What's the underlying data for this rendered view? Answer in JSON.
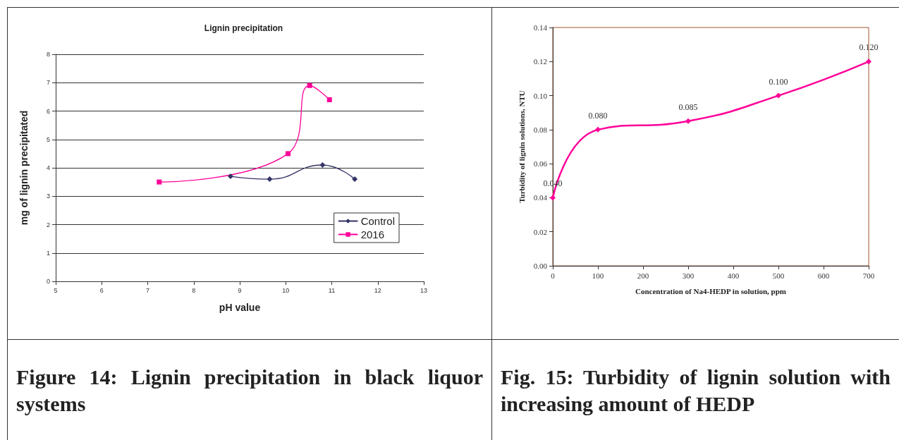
{
  "chart_data": [
    {
      "type": "line",
      "title": "Lignin precipitation",
      "xlabel": "pH value",
      "ylabel": "mg of lignin precipitated",
      "xlim": [
        5,
        13
      ],
      "xticks": [
        5,
        6,
        7,
        8,
        9,
        10,
        11,
        12,
        13
      ],
      "ylim": [
        0,
        8
      ],
      "yticks": [
        0,
        1,
        2,
        3,
        4,
        5,
        6,
        7,
        8
      ],
      "grid": "y",
      "legend": "bottom right",
      "series": [
        {
          "name": "Control",
          "color": "#333366",
          "marker": "diamond",
          "x": [
            8.8,
            9.65,
            10.8,
            11.5
          ],
          "values": [
            3.7,
            3.6,
            4.1,
            3.6
          ]
        },
        {
          "name": "2016",
          "color": "#ff0099",
          "marker": "square",
          "x": [
            7.25,
            10.05,
            10.52,
            10.95
          ],
          "values": [
            3.5,
            4.5,
            6.9,
            6.4
          ]
        }
      ],
      "annotations": [
        "Figure 14: Lignin precipitation in black liquor systems"
      ]
    },
    {
      "type": "line",
      "xlabel": "Concentration of Na4-HEDP in solution, ppm",
      "ylabel": "Turbidity of lignin solutions, NTU",
      "xlim": [
        0,
        700
      ],
      "xticks": [
        0,
        100,
        200,
        300,
        400,
        500,
        600,
        700
      ],
      "ylim": [
        0,
        0.14
      ],
      "yticks": [
        {
          "value": 0,
          "label": "0.00"
        },
        {
          "value": 0.02,
          "label": "0.02"
        },
        {
          "value": 0.04,
          "label": "0.04"
        },
        {
          "value": 0.06,
          "label": "0.06"
        },
        {
          "value": 0.08,
          "label": "0.08"
        },
        {
          "value": 0.1,
          "label": "0.10"
        },
        {
          "value": 0.12,
          "label": "0.12"
        },
        {
          "value": 0.14,
          "label": "0.14"
        }
      ],
      "grid": false,
      "legend": false,
      "marker": "diamond",
      "series": [
        {
          "color": "#ff0099",
          "x": [
            0,
            100,
            300,
            500,
            700
          ],
          "values": [
            0.04,
            0.08,
            0.085,
            0.1,
            0.12
          ],
          "value_labels": [
            "0.040",
            "0.080",
            "0.085",
            "0.100",
            "0.120"
          ]
        }
      ],
      "annotations": [
        "Fig. 15: Turbidity of lignin solution with increasing amount of HEDP"
      ]
    }
  ]
}
